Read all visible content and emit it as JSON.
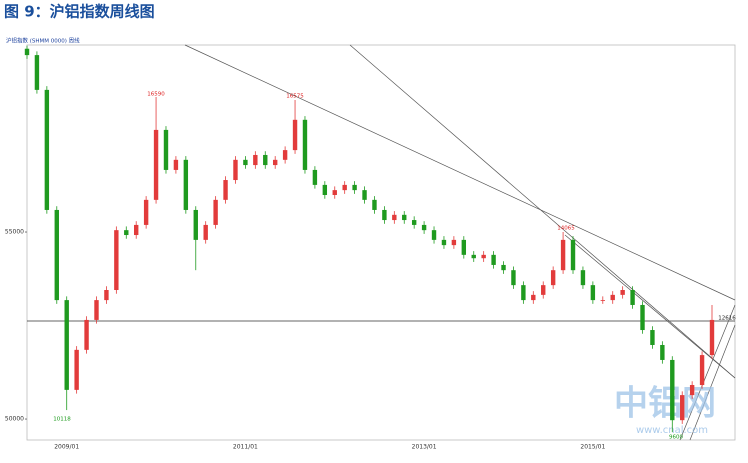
{
  "chart_data": {
    "type": "candlestick",
    "title": "图 9：沪铝指数周线图",
    "legend_text": "沪铝指数 (SHMM 0000) 周线",
    "categories": [
      null,
      null,
      null,
      null,
      "2009/01",
      null,
      null,
      null,
      null,
      null,
      null,
      null,
      null,
      null,
      null,
      null,
      null,
      null,
      null,
      null,
      null,
      null,
      "2011/01",
      null,
      null,
      null,
      null,
      null,
      null,
      null,
      null,
      null,
      null,
      null,
      null,
      null,
      null,
      null,
      null,
      null,
      "2013/01",
      null,
      null,
      null,
      null,
      null,
      null,
      null,
      null,
      null,
      null,
      null,
      null,
      null,
      null,
      null,
      null,
      "2015/01",
      null,
      null,
      null,
      null,
      null,
      null,
      null,
      null,
      null,
      null,
      null,
      null
    ],
    "open": [
      59900,
      59730,
      58800,
      55590,
      53180,
      50780,
      51850,
      52650,
      53180,
      53450,
      55050,
      54920,
      55190,
      55860,
      57730,
      56660,
      56930,
      55590,
      54790,
      55190,
      55860,
      56390,
      56930,
      56790,
      57060,
      56790,
      56930,
      57190,
      58000,
      56660,
      56260,
      55990,
      56120,
      56260,
      56120,
      55860,
      55590,
      55320,
      55460,
      55320,
      55190,
      55050,
      54790,
      54650,
      54790,
      54390,
      54300,
      54390,
      54120,
      53980,
      53580,
      53180,
      53320,
      53580,
      53980,
      54790,
      53980,
      53580,
      53180,
      53180,
      53320,
      53450,
      53050,
      52380,
      51980,
      51580,
      49970,
      50640,
      50910,
      51710
    ],
    "high": [
      59980,
      59830,
      58900,
      55690,
      53280,
      51950,
      52750,
      53280,
      53550,
      55150,
      55150,
      55290,
      55960,
      58610,
      57830,
      57030,
      57030,
      55690,
      55290,
      55960,
      56490,
      57030,
      57030,
      57160,
      57160,
      57030,
      57290,
      58530,
      58100,
      56760,
      56360,
      56220,
      56360,
      56360,
      56220,
      55960,
      55690,
      55560,
      55560,
      55420,
      55290,
      55150,
      54890,
      54890,
      54890,
      54490,
      54490,
      54490,
      54220,
      54080,
      53680,
      53420,
      53680,
      54080,
      55000,
      54890,
      54080,
      53680,
      53280,
      53420,
      53550,
      53550,
      53150,
      52480,
      52080,
      51680,
      50740,
      51010,
      51810,
      53050
    ],
    "low": [
      59630,
      58700,
      55490,
      53080,
      50240,
      50680,
      51750,
      52550,
      53080,
      53350,
      54820,
      54820,
      55090,
      55760,
      56560,
      56560,
      55490,
      53980,
      54690,
      55090,
      55760,
      56290,
      56690,
      56690,
      56690,
      56690,
      56830,
      57090,
      56560,
      56160,
      55890,
      55890,
      56020,
      56020,
      55760,
      55490,
      55220,
      55220,
      55220,
      55090,
      54950,
      54690,
      54550,
      54550,
      54290,
      54200,
      54200,
      54020,
      53880,
      53480,
      53080,
      53080,
      53220,
      53480,
      53880,
      53880,
      53480,
      53080,
      53080,
      53080,
      53220,
      52950,
      52280,
      51880,
      51480,
      49650,
      49870,
      50540,
      50810,
      51610
    ],
    "close": [
      59730,
      58800,
      55590,
      53180,
      50780,
      51850,
      52650,
      53180,
      53450,
      55050,
      54920,
      55190,
      55860,
      57730,
      56660,
      56930,
      55590,
      54790,
      55190,
      55860,
      56390,
      56930,
      56790,
      57060,
      56790,
      56930,
      57190,
      58000,
      56660,
      56260,
      55990,
      56120,
      56260,
      56120,
      55860,
      55590,
      55320,
      55460,
      55320,
      55190,
      55050,
      54790,
      54650,
      54790,
      54390,
      54300,
      54390,
      54120,
      53980,
      53580,
      53180,
      53320,
      53580,
      53980,
      54790,
      53980,
      53580,
      53180,
      53180,
      53320,
      53450,
      53050,
      52380,
      51980,
      51580,
      49970,
      50640,
      50910,
      51710,
      52650
    ],
    "up_color": "#e23b3b",
    "down_color": "#1f9a1f",
    "ylim": [
      49440,
      60000
    ],
    "yticks": [
      50000,
      55000
    ],
    "annotations": [
      "16590",
      "16575",
      "14065",
      "10118",
      "9600",
      "12616"
    ],
    "watermark": "中铝网",
    "watermark_url": "www.cnal.com"
  }
}
